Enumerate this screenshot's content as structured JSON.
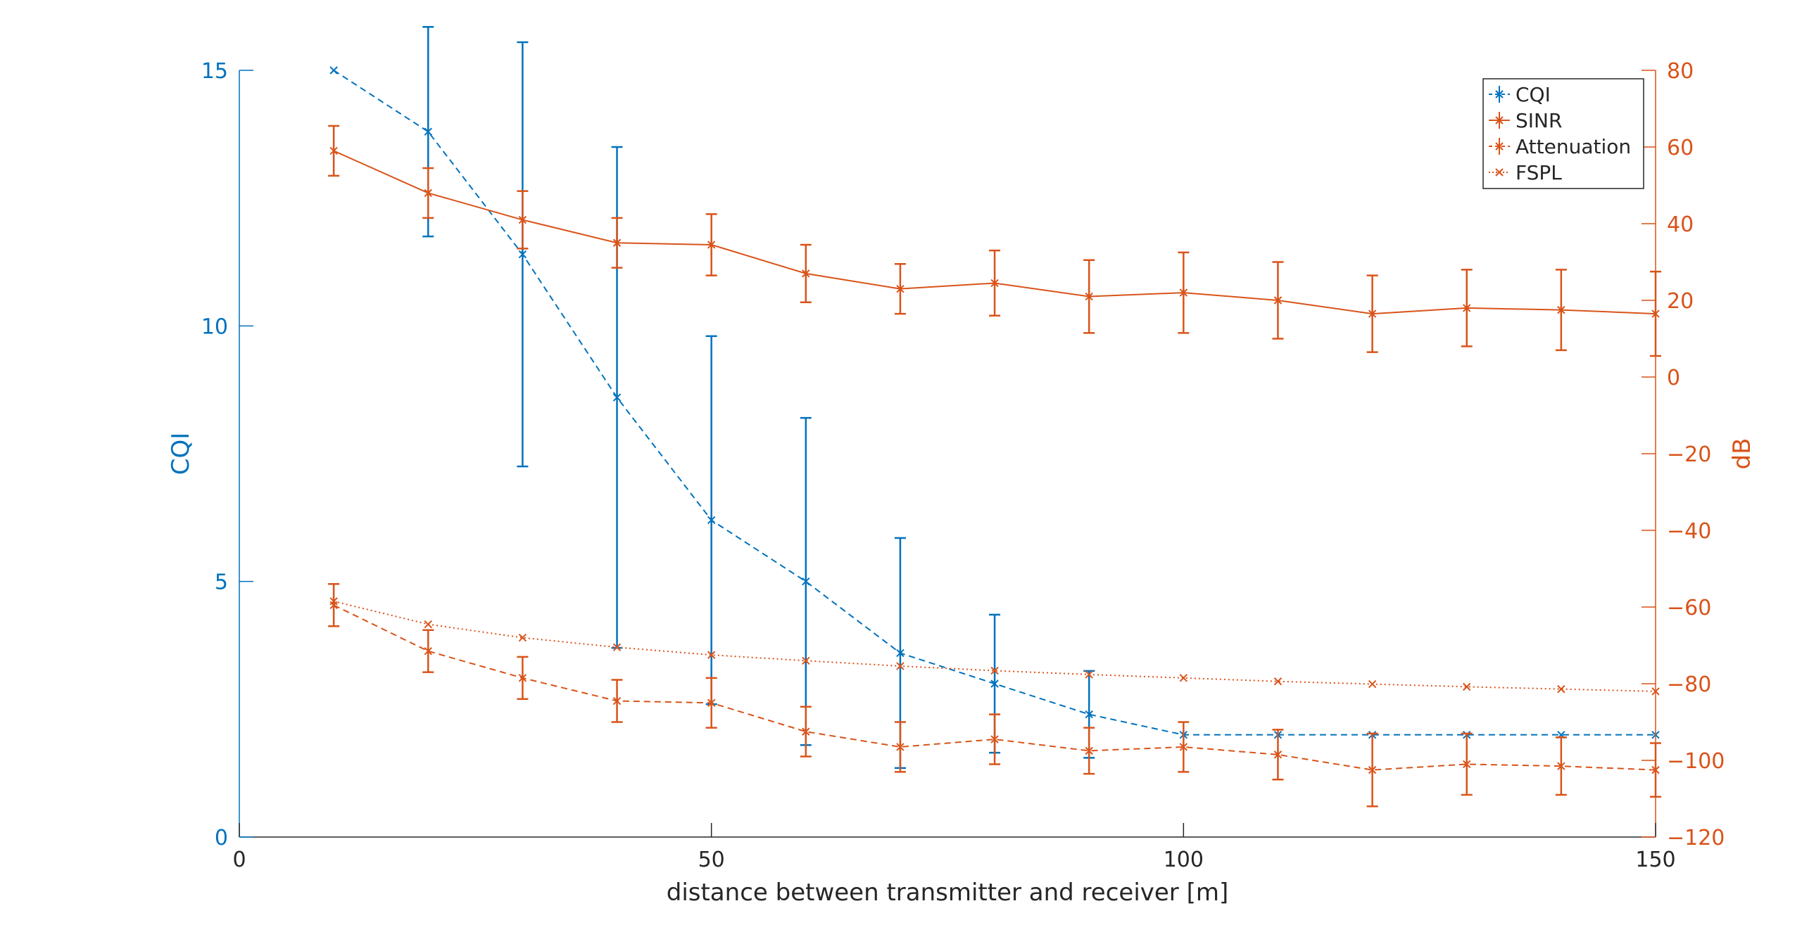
{
  "chart_data": {
    "type": "line",
    "title": "",
    "xlabel": "distance between transmitter and receiver [m]",
    "ylabel_left": "CQI",
    "ylabel_right": "dB",
    "xlim": [
      0,
      150
    ],
    "ylim_left": [
      0,
      15
    ],
    "ylim_right": [
      -120,
      80
    ],
    "x_ticks": [
      0,
      50,
      100,
      150
    ],
    "x_tick_labels": [
      "0",
      "50",
      "100",
      "150"
    ],
    "y_left_ticks": [
      0,
      5,
      10,
      15
    ],
    "y_left_tick_labels": [
      "0",
      "5",
      "10",
      "15"
    ],
    "y_right_ticks": [
      -120,
      -100,
      -80,
      -60,
      -40,
      -20,
      0,
      20,
      40,
      60,
      80
    ],
    "y_right_tick_labels": [
      "−120",
      "−100",
      "−80",
      "−60",
      "−40",
      "−20",
      "0",
      "20",
      "40",
      "60",
      "80"
    ],
    "grid": false,
    "legend_position": "top-right",
    "colors": {
      "left_axis": "#0072BD",
      "right_axis": "#D95319",
      "bottom_axis": "#262626"
    },
    "x": [
      10,
      20,
      30,
      40,
      50,
      60,
      70,
      80,
      90,
      100,
      110,
      120,
      130,
      140,
      150
    ],
    "series": [
      {
        "name": "CQI",
        "axis": "left",
        "color": "#0072BD",
        "linestyle": "dashed",
        "marker": "x",
        "errorbars": true,
        "values": [
          15,
          13.8,
          11.4,
          8.6,
          6.2,
          5.0,
          3.6,
          3.0,
          2.4,
          2.0,
          2.0,
          2.0,
          2.0,
          2.0,
          2.0
        ],
        "err": [
          0,
          2.05,
          4.15,
          4.9,
          3.6,
          3.2,
          2.25,
          1.35,
          0.85,
          0,
          0,
          0,
          0,
          0,
          0
        ]
      },
      {
        "name": "SINR",
        "axis": "right",
        "color": "#D95319",
        "linestyle": "solid",
        "marker": "x",
        "errorbars": true,
        "values": [
          59,
          48,
          41,
          35,
          34.5,
          27,
          23,
          24.5,
          21,
          22,
          20,
          16.5,
          18,
          17.5,
          16.5
        ],
        "err": [
          6.5,
          6.5,
          7.5,
          6.5,
          8,
          7.5,
          6.5,
          8.5,
          9.5,
          10.5,
          10,
          10,
          10,
          10.5,
          11
        ]
      },
      {
        "name": "Attenuation",
        "axis": "right",
        "color": "#D95319",
        "linestyle": "dashed",
        "marker": "x",
        "errorbars": true,
        "values": [
          -59.5,
          -71.5,
          -78.5,
          -84.5,
          -85,
          -92.5,
          -96.5,
          -94.5,
          -97.5,
          -96.5,
          -98.5,
          -102.5,
          -101,
          -101.5,
          -102.5
        ],
        "err": [
          5.5,
          5.5,
          5.5,
          5.5,
          6.5,
          6.5,
          6.5,
          6.5,
          6,
          6.5,
          6.5,
          9.5,
          8,
          7.5,
          7
        ]
      },
      {
        "name": "FSPL",
        "axis": "right",
        "color": "#D95319",
        "linestyle": "dotted",
        "marker": "x",
        "errorbars": false,
        "values": [
          -58.5,
          -64.5,
          -68.0,
          -70.5,
          -72.5,
          -74.0,
          -75.4,
          -76.6,
          -77.6,
          -78.5,
          -79.4,
          -80.1,
          -80.8,
          -81.4,
          -82.0
        ]
      }
    ]
  }
}
